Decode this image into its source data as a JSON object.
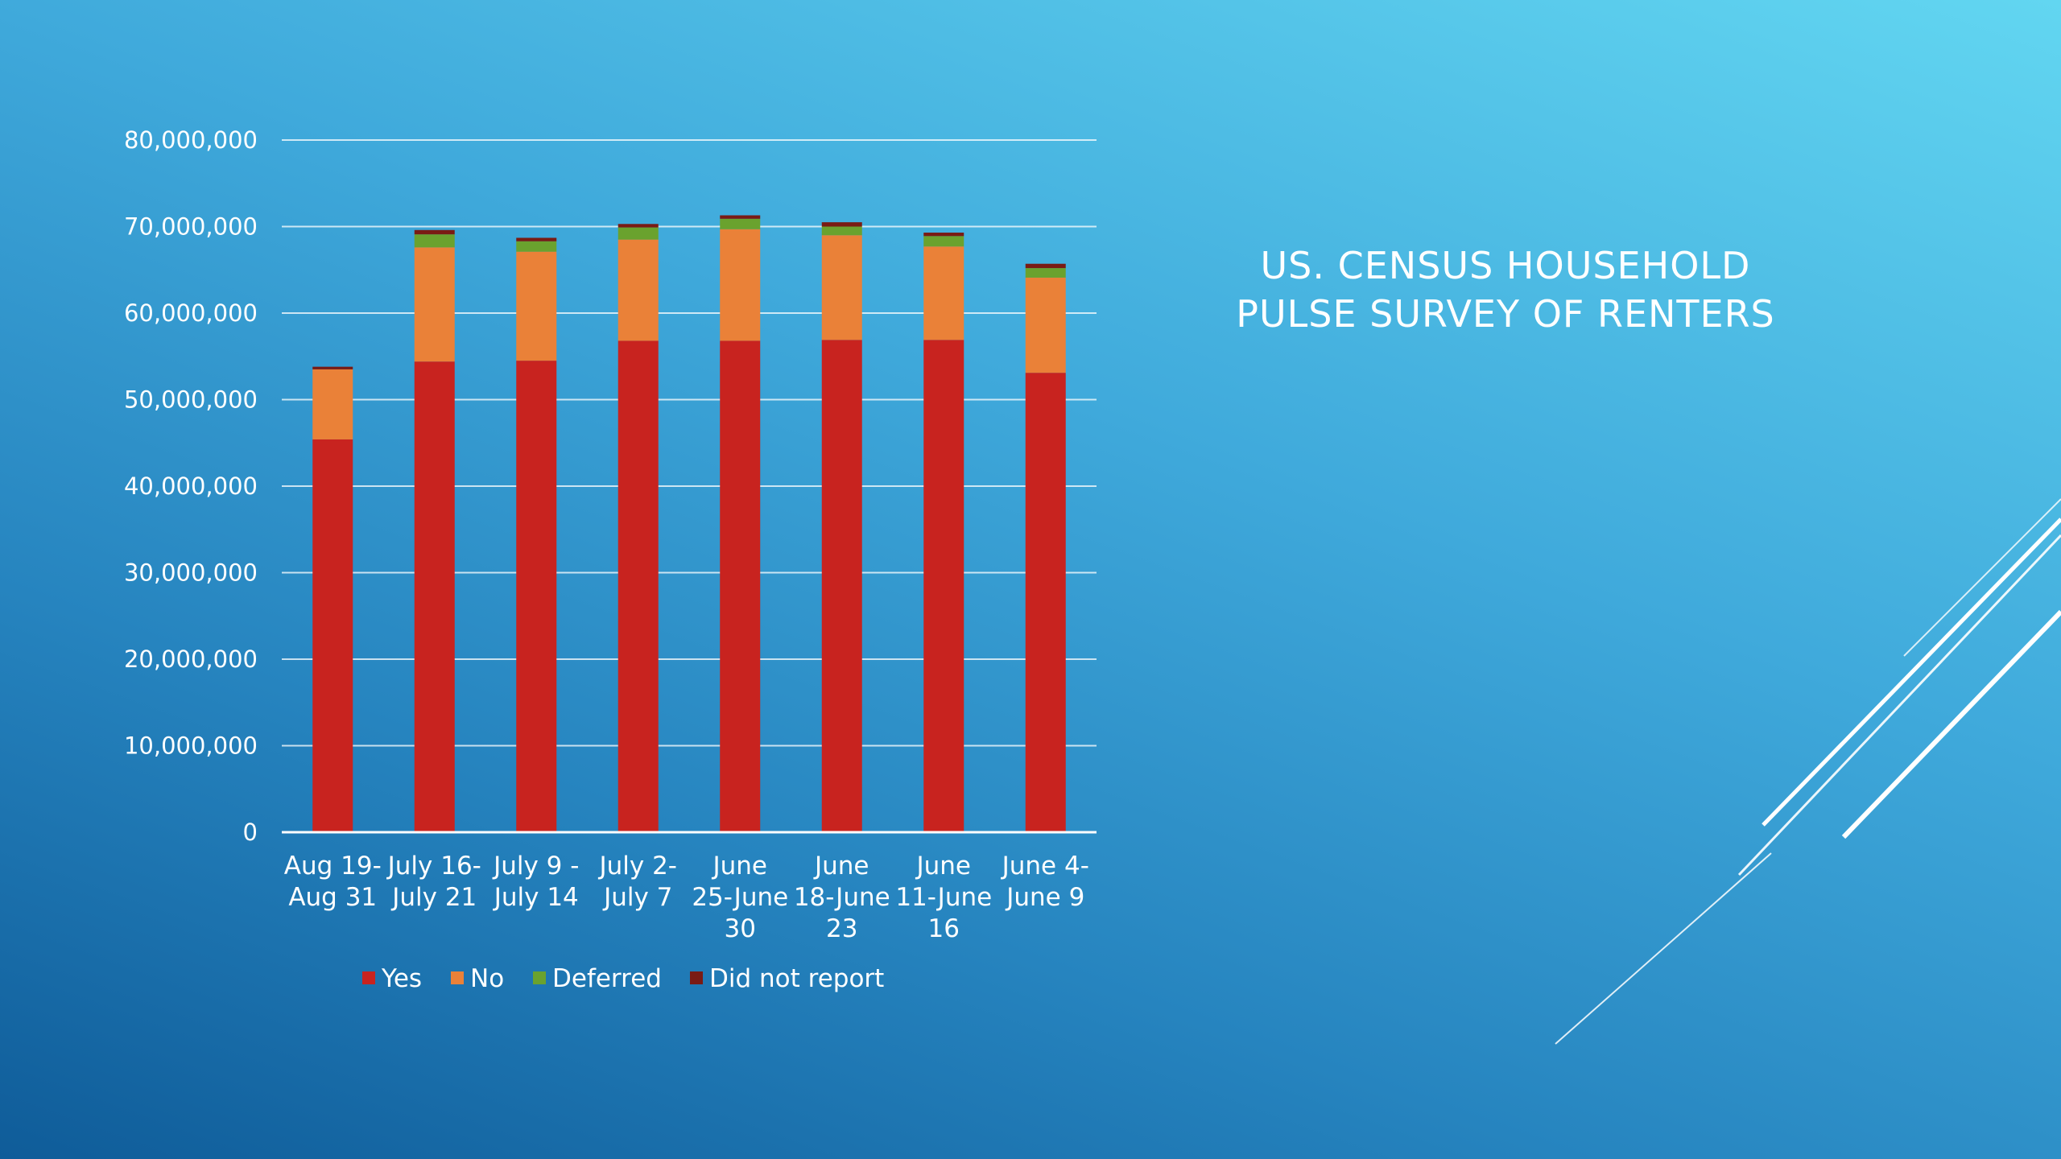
{
  "slide": {
    "title_lines": [
      "US. CENSUS HOUSEHOLD",
      "PULSE SURVEY OF RENTERS"
    ]
  },
  "chart_data": {
    "type": "bar",
    "stacked": true,
    "categories": [
      [
        "Aug 19-",
        "Aug 31"
      ],
      [
        "July 16-",
        "July 21"
      ],
      [
        "July 9 -",
        "July 14"
      ],
      [
        "July 2-",
        "July 7"
      ],
      [
        "June",
        "25-June",
        "30"
      ],
      [
        "June",
        "18-June",
        "23"
      ],
      [
        "June",
        "11-June",
        "16"
      ],
      [
        "June 4-",
        "June 9"
      ]
    ],
    "series": [
      {
        "name": "Yes",
        "color": "#c8231f",
        "values": [
          45400000,
          54400000,
          54500000,
          56800000,
          56800000,
          56900000,
          56900000,
          53100000
        ]
      },
      {
        "name": "No",
        "color": "#ea8138",
        "values": [
          8100000,
          13200000,
          12600000,
          11700000,
          12900000,
          12100000,
          10800000,
          11000000
        ]
      },
      {
        "name": "Deferred",
        "color": "#6aa22e",
        "values": [
          0,
          1500000,
          1200000,
          1400000,
          1200000,
          1000000,
          1200000,
          1100000
        ]
      },
      {
        "name": "Did not report",
        "color": "#7a1b14",
        "values": [
          300000,
          500000,
          400000,
          400000,
          400000,
          500000,
          400000,
          500000
        ]
      }
    ],
    "y_ticks": [
      "0",
      "10,000,000",
      "20,000,000",
      "30,000,000",
      "40,000,000",
      "50,000,000",
      "60,000,000",
      "70,000,000",
      "80,000,000"
    ],
    "ylim": [
      0,
      80000000
    ],
    "grid": true,
    "legend_position": "bottom"
  }
}
